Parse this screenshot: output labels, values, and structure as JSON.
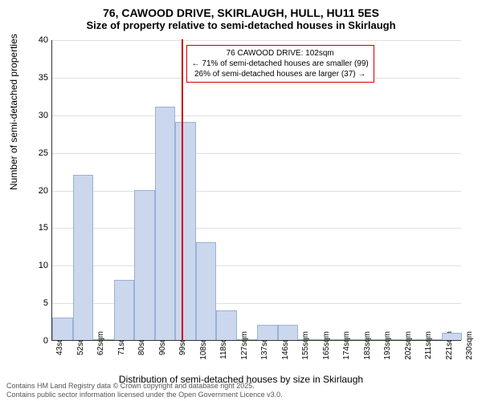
{
  "chart": {
    "type": "histogram",
    "title": "76, CAWOOD DRIVE, SKIRLAUGH, HULL, HU11 5ES",
    "subtitle": "Size of property relative to semi-detached houses in Skirlaugh",
    "xlabel": "Distribution of semi-detached houses by size in Skirlaugh",
    "ylabel": "Number of semi-detached properties",
    "ylim_min": 0,
    "ylim_max": 40,
    "ytick_step": 5,
    "yticks": [
      0,
      5,
      10,
      15,
      20,
      25,
      30,
      35,
      40
    ],
    "xticks": [
      "43sqm",
      "52sqm",
      "62sqm",
      "71sqm",
      "80sqm",
      "90sqm",
      "99sqm",
      "108sqm",
      "118sqm",
      "127sqm",
      "137sqm",
      "146sqm",
      "155sqm",
      "165sqm",
      "174sqm",
      "183sqm",
      "193sqm",
      "202sqm",
      "211sqm",
      "221sqm",
      "230sqm"
    ],
    "bar_values": [
      3,
      22,
      0,
      8,
      20,
      31,
      29,
      13,
      4,
      0,
      2,
      2,
      0,
      0,
      0,
      0,
      0,
      0,
      0,
      1
    ],
    "bar_fill": "#cad7ed",
    "bar_stroke": "#9bb0d6",
    "marker_position_index": 6.3,
    "marker_color": "#cc0000",
    "grid_color": "#e0e0e0",
    "background_color": "#ffffff",
    "annotation": {
      "line1": "76 CAWOOD DRIVE: 102sqm",
      "line2": "← 71% of semi-detached houses are smaller (99)",
      "line3": "26% of semi-detached houses are larger (37) →",
      "border_color": "#cc0000"
    },
    "footer_line1": "Contains HM Land Registry data © Crown copyright and database right 2025.",
    "footer_line2": "Contains public sector information licensed under the Open Government Licence v3.0."
  }
}
